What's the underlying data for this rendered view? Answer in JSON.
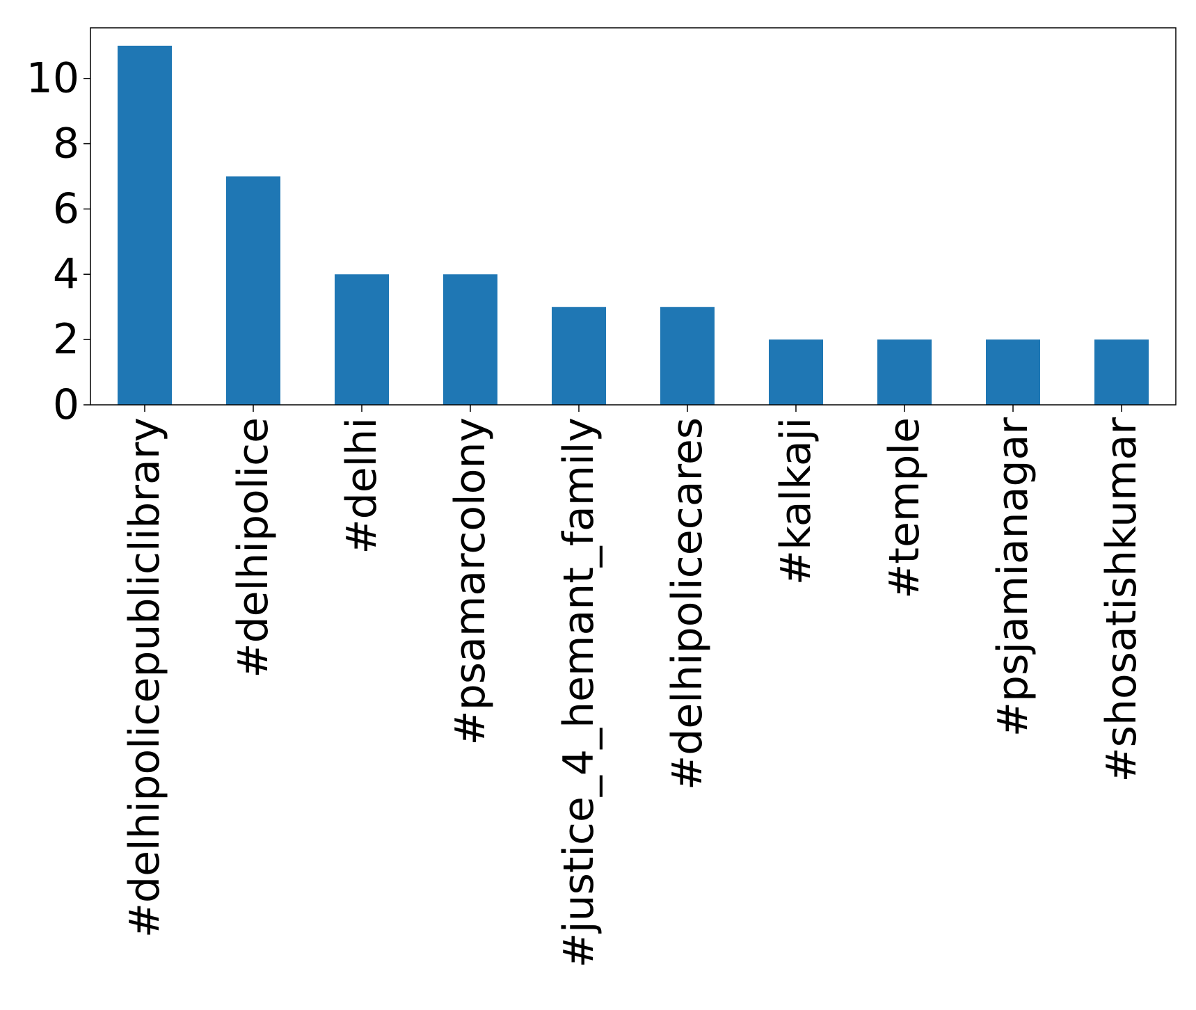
{
  "chart_data": {
    "type": "bar",
    "title": "",
    "xlabel": "",
    "ylabel": "",
    "categories": [
      "#delhipolicepubliclibrary",
      "#delhipolice",
      "#delhi",
      "#psamarcolony",
      "#justice_4_hemant_family",
      "#delhipolicecares",
      "#kalkaji",
      "#temple",
      "#psjamianagar",
      "#shosatishkumar"
    ],
    "values": [
      11,
      7,
      4,
      4,
      3,
      3,
      2,
      2,
      2,
      2
    ],
    "ylim": [
      0,
      11.55
    ],
    "yticks": [
      "0",
      "2",
      "4",
      "6",
      "8",
      "10"
    ],
    "bar_color": "#1f77b4",
    "grid": false,
    "legend": "none"
  }
}
